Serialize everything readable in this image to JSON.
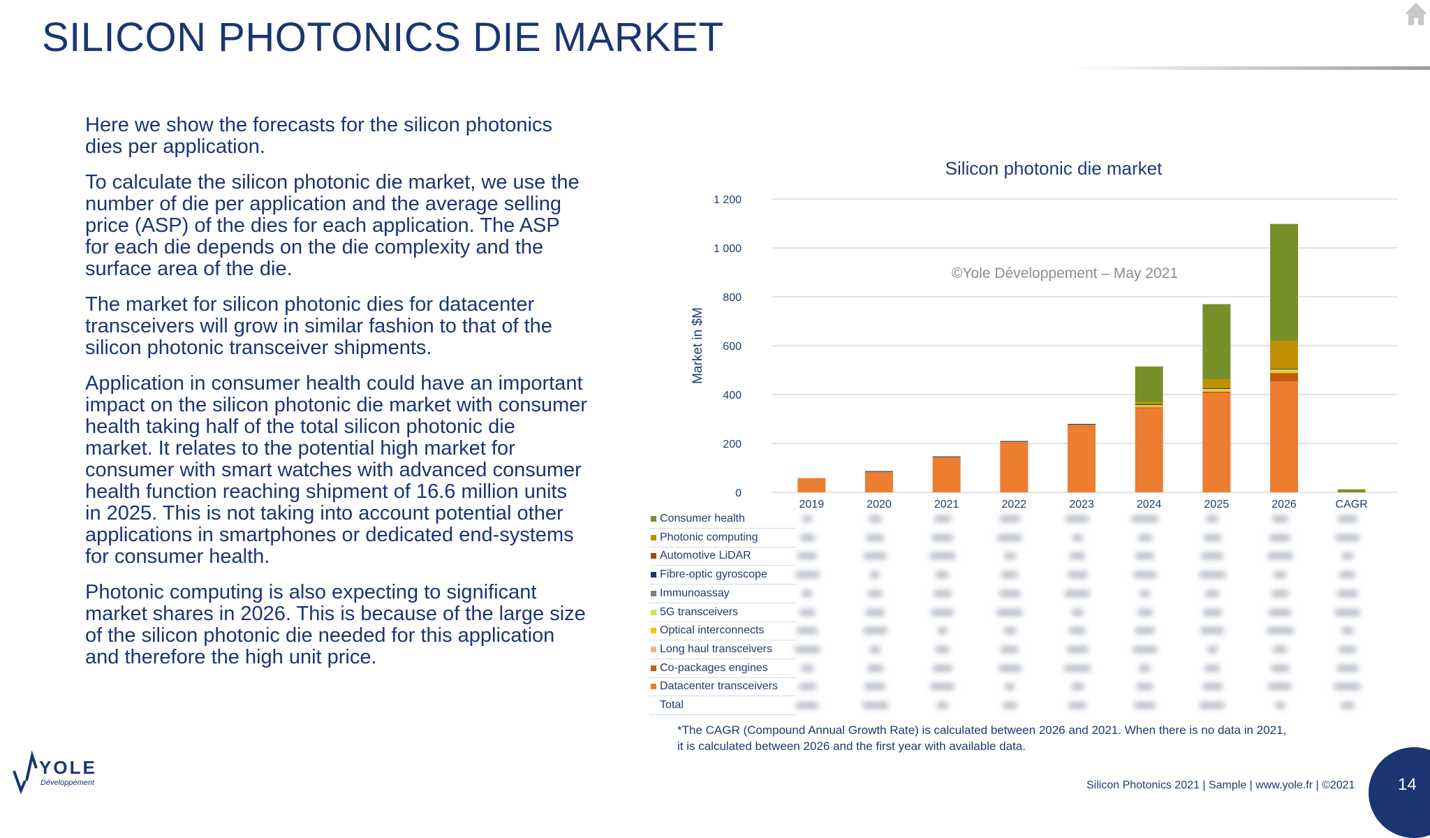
{
  "slide": {
    "title": "SILICON PHOTONICS DIE MARKET",
    "paragraphs": [
      "Here we show the forecasts for the silicon photonics dies per application.",
      "To calculate the silicon photonic die market, we use the number of die per application and the average selling price (ASP) of the dies for each application. The ASP for each die depends on the die complexity and the surface area of the die.",
      "The market for silicon photonic dies for datacenter transceivers will grow in similar fashion to that of the silicon photonic transceiver shipments.",
      "Application in consumer health could have an important impact on the silicon photonic die market with consumer health taking half of the total silicon photonic die market. It relates to the potential high market for consumer with smart watches with advanced consumer health function reaching shipment of 16.6 million units in 2025. This is not taking into account potential other applications in smartphones or dedicated end-systems for consumer health.",
      "Photonic computing is also expecting to significant market shares in 2026. This is because of the large size of the silicon photonic die needed for this application and therefore the high unit price."
    ],
    "footnote_line1": "*The CAGR (Compound Annual Growth Rate) is calculated between 2026 and 2021. When there is no data in 2021,",
    "footnote_line2": "it is calculated between 2026 and the first year with available data.",
    "footer": "Silicon Photonics 2021 | Sample | www.yole.fr | ©2021",
    "page_number": "14",
    "logo_text": "YOLE",
    "logo_subtext": "Développement"
  },
  "chart_data": {
    "type": "bar",
    "stacked": true,
    "title": "Silicon photonic die market",
    "watermark": "©Yole Développement – May 2021",
    "ylabel": "Market in $M",
    "ylim": [
      0,
      1200
    ],
    "yticks": [
      0,
      200,
      400,
      600,
      800,
      1000,
      1200
    ],
    "ytick_labels": [
      "0",
      "200",
      "400",
      "600",
      "800",
      "1 000",
      "1 200"
    ],
    "grid": true,
    "categories": [
      "2019",
      "2020",
      "2021",
      "2022",
      "2023",
      "2024",
      "2025",
      "2026",
      "CAGR"
    ],
    "series": [
      {
        "name": "Datacenter transceivers",
        "color": "#ed7d31",
        "values": [
          58,
          84,
          144,
          207,
          277,
          344,
          406,
          454,
          0
        ]
      },
      {
        "name": "Co-packages engines",
        "color": "#c55a11",
        "values": [
          0,
          0,
          0,
          0,
          0,
          4,
          6,
          34,
          0
        ]
      },
      {
        "name": "Long haul transceivers",
        "color": "#f4b183",
        "values": [
          0,
          0,
          0,
          0,
          0,
          0,
          0,
          0,
          0
        ]
      },
      {
        "name": "Optical interconnects",
        "color": "#ffc000",
        "values": [
          0,
          0,
          0,
          0,
          0,
          5,
          6,
          8,
          0
        ]
      },
      {
        "name": "5G transceivers",
        "color": "#c9e265",
        "values": [
          0,
          0,
          0,
          0,
          0,
          4,
          5,
          6,
          0
        ]
      },
      {
        "name": "Immunoassay",
        "color": "#7f7f7f",
        "values": [
          0,
          0,
          0,
          0,
          0,
          0,
          0,
          0,
          0
        ]
      },
      {
        "name": "Fibre-optic gyroscope",
        "color": "#1f3864",
        "values": [
          0,
          3,
          3,
          3,
          3,
          3,
          3,
          3,
          0
        ]
      },
      {
        "name": "Automotive LiDAR",
        "color": "#9e480e",
        "values": [
          0,
          0,
          0,
          0,
          0,
          0,
          0,
          0,
          0
        ]
      },
      {
        "name": "Photonic computing",
        "color": "#bf9000",
        "values": [
          0,
          0,
          0,
          0,
          0,
          10,
          37,
          115,
          0
        ]
      },
      {
        "name": "Consumer health",
        "color": "#77902a",
        "values": [
          0,
          0,
          0,
          0,
          0,
          145,
          307,
          478,
          12
        ]
      }
    ],
    "table_rows": [
      "Consumer health",
      "Photonic computing",
      "Automotive LiDAR",
      "Fibre-optic gyroscope",
      "Immunoassay",
      "5G transceivers",
      "Optical interconnects",
      "Long haul transceivers",
      "Co-packages engines",
      "Datacenter transceivers",
      "Total"
    ]
  },
  "colors": {
    "title": "#1a3572",
    "grid": "#d0daee",
    "axis_text": "#1f3a6e"
  }
}
